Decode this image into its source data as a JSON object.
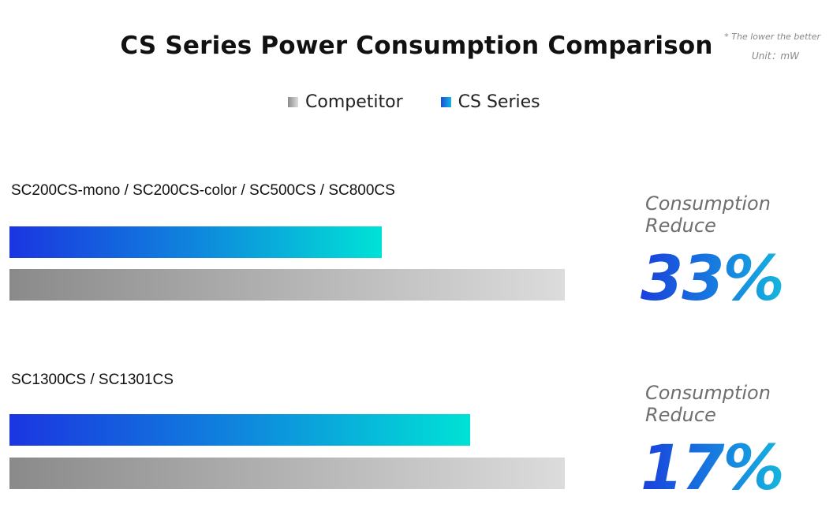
{
  "chart_data": {
    "type": "bar",
    "orientation": "horizontal",
    "title": "CS Series Power Consumption Comparison",
    "note": "* The lower the better",
    "unit": "Unit：mW",
    "legend": [
      {
        "name": "Competitor",
        "color_start": "#8c8c8c",
        "color_end": "#dddddd"
      },
      {
        "name": "CS Series",
        "color_start": "#1d4fd6",
        "color_end": "#12b5e3"
      }
    ],
    "legend_placement": "top-center",
    "grid": false,
    "xlim": [
      0,
      100
    ],
    "groups": [
      {
        "category": "SC200CS-mono / SC200CS-color / SC500CS / SC800CS",
        "competitor_value": 100,
        "cs_value": 67,
        "reduce_label_1": "Consumption",
        "reduce_label_2": "Reduce",
        "reduce_percent": "33%"
      },
      {
        "category": "SC1300CS / SC1301CS",
        "competitor_value": 100,
        "cs_value": 83,
        "reduce_label_1": "Consumption",
        "reduce_label_2": "Reduce",
        "reduce_percent": "17%"
      }
    ]
  }
}
